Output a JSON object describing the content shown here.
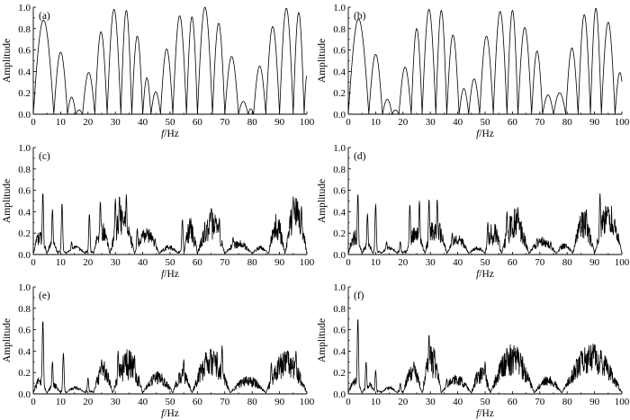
{
  "colors": {
    "line": "#000000",
    "axis": "#000000",
    "background": "#ffffff"
  },
  "chart_data": [
    {
      "type": "line",
      "panel": "(a)",
      "xlabel_italic": "f",
      "xlabel_rest": "/Hz",
      "ylabel": "Amplitude",
      "xlim": [
        0,
        100
      ],
      "ylim": [
        0,
        1.0
      ],
      "xticks": [
        "0",
        "10",
        "20",
        "30",
        "40",
        "50",
        "60",
        "70",
        "80",
        "90",
        "100"
      ],
      "yticks": [
        "0.0",
        "0.2",
        "0.4",
        "0.6",
        "0.8",
        "1.0"
      ],
      "grid": false,
      "series": [
        {
          "lobes": [
            {
              "x0": 0,
              "x1": 7.5,
              "peak": 0.88
            },
            {
              "x0": 7.5,
              "x1": 12.5,
              "peak": 0.58
            },
            {
              "x0": 12.5,
              "x1": 15.5,
              "peak": 0.16
            },
            {
              "x0": 15.5,
              "x1": 18,
              "peak": 0.04
            },
            {
              "x0": 18,
              "x1": 22.5,
              "peak": 0.39
            },
            {
              "x0": 22.5,
              "x1": 27,
              "peak": 0.77
            },
            {
              "x0": 27,
              "x1": 32,
              "peak": 0.98
            },
            {
              "x0": 32,
              "x1": 36,
              "peak": 0.97
            },
            {
              "x0": 36,
              "x1": 40,
              "peak": 0.73
            },
            {
              "x0": 40,
              "x1": 43,
              "peak": 0.34
            },
            {
              "x0": 43,
              "x1": 46.5,
              "peak": 0.21
            },
            {
              "x0": 46.5,
              "x1": 51,
              "peak": 0.61
            },
            {
              "x0": 51,
              "x1": 56,
              "peak": 0.92
            },
            {
              "x0": 56,
              "x1": 60,
              "peak": 0.91
            },
            {
              "x0": 60,
              "x1": 65.5,
              "peak": 1.0
            },
            {
              "x0": 65.5,
              "x1": 70,
              "peak": 0.85
            },
            {
              "x0": 70,
              "x1": 75,
              "peak": 0.54
            },
            {
              "x0": 75,
              "x1": 78.5,
              "peak": 0.12
            },
            {
              "x0": 78.5,
              "x1": 80.5,
              "peak": 0.05
            },
            {
              "x0": 80.5,
              "x1": 85,
              "peak": 0.45
            },
            {
              "x0": 85,
              "x1": 90,
              "peak": 0.82
            },
            {
              "x0": 90,
              "x1": 95,
              "peak": 0.99
            },
            {
              "x0": 95,
              "x1": 99,
              "peak": 0.95
            },
            {
              "x0": 99,
              "x1": 101,
              "peak": 0.36
            }
          ]
        }
      ]
    },
    {
      "type": "line",
      "panel": "(b)",
      "xlabel_italic": "f",
      "xlabel_rest": "/Hz",
      "ylabel": "Amplitude",
      "xlim": [
        0,
        100
      ],
      "ylim": [
        0,
        1.0
      ],
      "xticks": [
        "0",
        "10",
        "20",
        "30",
        "40",
        "50",
        "60",
        "70",
        "80",
        "90",
        "100"
      ],
      "yticks": [
        "0.0",
        "0.2",
        "0.4",
        "0.6",
        "0.8",
        "1.0"
      ],
      "grid": false,
      "series": [
        {
          "lobes": [
            {
              "x0": 0,
              "x1": 7.5,
              "peak": 0.89
            },
            {
              "x0": 7.5,
              "x1": 12.5,
              "peak": 0.56
            },
            {
              "x0": 12.5,
              "x1": 16,
              "peak": 0.14
            },
            {
              "x0": 16,
              "x1": 18.5,
              "peak": 0.04
            },
            {
              "x0": 18.5,
              "x1": 23,
              "peak": 0.44
            },
            {
              "x0": 23,
              "x1": 27,
              "peak": 0.8
            },
            {
              "x0": 27,
              "x1": 32,
              "peak": 0.98
            },
            {
              "x0": 32,
              "x1": 36,
              "peak": 0.97
            },
            {
              "x0": 36,
              "x1": 40.5,
              "peak": 0.74
            },
            {
              "x0": 40.5,
              "x1": 44,
              "peak": 0.24
            },
            {
              "x0": 44,
              "x1": 48,
              "peak": 0.33
            },
            {
              "x0": 48,
              "x1": 53,
              "peak": 0.73
            },
            {
              "x0": 53,
              "x1": 58,
              "peak": 0.96
            },
            {
              "x0": 58,
              "x1": 62,
              "peak": 0.97
            },
            {
              "x0": 62,
              "x1": 67,
              "peak": 0.81
            },
            {
              "x0": 67,
              "x1": 71,
              "peak": 0.59
            },
            {
              "x0": 71,
              "x1": 75,
              "peak": 0.18
            },
            {
              "x0": 75,
              "x1": 79.5,
              "peak": 0.2
            },
            {
              "x0": 79.5,
              "x1": 84,
              "peak": 0.62
            },
            {
              "x0": 84,
              "x1": 88.5,
              "peak": 0.93
            },
            {
              "x0": 88.5,
              "x1": 92.5,
              "peak": 0.99
            },
            {
              "x0": 92.5,
              "x1": 97.5,
              "peak": 0.86
            },
            {
              "x0": 97.5,
              "x1": 101,
              "peak": 0.39
            }
          ]
        }
      ]
    },
    {
      "type": "line",
      "panel": "(c)",
      "xlabel_italic": "f",
      "xlabel_rest": "/Hz",
      "ylabel": "Amplitude",
      "xlim": [
        0,
        100
      ],
      "ylim": [
        0,
        1.0
      ],
      "xticks": [
        "0",
        "10",
        "20",
        "30",
        "40",
        "50",
        "60",
        "70",
        "80",
        "90",
        "100"
      ],
      "yticks": [
        "0.0",
        "0.2",
        "0.4",
        "0.6",
        "0.8",
        "1.0"
      ],
      "grid": false,
      "series": [
        {
          "spikes": [
            [
              3.5,
              0.58
            ],
            [
              7,
              0.42
            ],
            [
              10.5,
              0.48
            ],
            [
              14,
              0.12
            ],
            [
              20.5,
              0.38
            ],
            [
              24.5,
              0.5
            ],
            [
              30,
              0.52
            ],
            [
              31.5,
              0.55
            ],
            [
              34,
              0.56
            ],
            [
              38,
              0.24
            ],
            [
              41.5,
              0.22
            ],
            [
              44.5,
              0.15
            ],
            [
              54.5,
              0.33
            ],
            [
              65,
              0.43
            ],
            [
              68,
              0.34
            ],
            [
              73,
              0.16
            ],
            [
              77,
              0.11
            ],
            [
              95,
              0.54
            ],
            [
              98,
              0.45
            ]
          ],
          "noise": [
            [
              0,
              5,
              0.14,
              0.08
            ],
            [
              5,
              9,
              0.08,
              0.05
            ],
            [
              12,
              19,
              0.04,
              0.03
            ],
            [
              22,
              28,
              0.18,
              0.12
            ],
            [
              28,
              37,
              0.3,
              0.15
            ],
            [
              37,
              46,
              0.14,
              0.1
            ],
            [
              46,
              53,
              0.05,
              0.03
            ],
            [
              55,
              60,
              0.26,
              0.08
            ],
            [
              60,
              70,
              0.3,
              0.12
            ],
            [
              70,
              80,
              0.08,
              0.05
            ],
            [
              80,
              86,
              0.04,
              0.03
            ],
            [
              86,
              92,
              0.26,
              0.12
            ],
            [
              92,
              100,
              0.34,
              0.2
            ]
          ]
        }
      ]
    },
    {
      "type": "line",
      "panel": "(d)",
      "xlabel_italic": "f",
      "xlabel_rest": "/Hz",
      "ylabel": "Amplitude",
      "xlim": [
        0,
        100
      ],
      "ylim": [
        0,
        1.0
      ],
      "xticks": [
        "0",
        "10",
        "20",
        "30",
        "40",
        "50",
        "60",
        "70",
        "80",
        "90",
        "100"
      ],
      "yticks": [
        "0.0",
        "0.2",
        "0.4",
        "0.6",
        "0.8",
        "1.0"
      ],
      "grid": false,
      "series": [
        {
          "spikes": [
            [
              3.5,
              0.57
            ],
            [
              7,
              0.38
            ],
            [
              10,
              0.47
            ],
            [
              14,
              0.12
            ],
            [
              19,
              0.12
            ],
            [
              22.5,
              0.47
            ],
            [
              26,
              0.5
            ],
            [
              29.5,
              0.52
            ],
            [
              32.5,
              0.52
            ],
            [
              38,
              0.2
            ],
            [
              41,
              0.14
            ],
            [
              46,
              0.04
            ],
            [
              51,
              0.3
            ],
            [
              58,
              0.4
            ],
            [
              62,
              0.44
            ],
            [
              69,
              0.15
            ],
            [
              74,
              0.12
            ],
            [
              87,
              0.42
            ],
            [
              92,
              0.57
            ],
            [
              95,
              0.44
            ]
          ],
          "noise": [
            [
              0,
              5,
              0.14,
              0.08
            ],
            [
              5,
              9,
              0.08,
              0.04
            ],
            [
              12,
              18,
              0.04,
              0.03
            ],
            [
              21,
              28,
              0.16,
              0.1
            ],
            [
              28,
              36,
              0.25,
              0.12
            ],
            [
              36,
              44,
              0.1,
              0.08
            ],
            [
              44,
              50,
              0.04,
              0.03
            ],
            [
              50,
              56,
              0.24,
              0.08
            ],
            [
              56,
              66,
              0.3,
              0.12
            ],
            [
              66,
              76,
              0.1,
              0.06
            ],
            [
              76,
              82,
              0.06,
              0.04
            ],
            [
              82,
              90,
              0.28,
              0.12
            ],
            [
              90,
              100,
              0.28,
              0.2
            ]
          ]
        }
      ]
    },
    {
      "type": "line",
      "panel": "(e)",
      "xlabel_italic": "f",
      "xlabel_rest": "/Hz",
      "ylabel": "Amplitude",
      "xlim": [
        0,
        100
      ],
      "ylim": [
        0,
        1.0
      ],
      "xticks": [
        "0",
        "10",
        "20",
        "30",
        "40",
        "50",
        "60",
        "70",
        "80",
        "90",
        "100"
      ],
      "yticks": [
        "0.0",
        "0.2",
        "0.4",
        "0.6",
        "0.8",
        "1.0"
      ],
      "grid": false,
      "series": [
        {
          "spikes": [
            [
              3.5,
              0.69
            ],
            [
              7,
              0.3
            ],
            [
              11,
              0.38
            ],
            [
              15,
              0.07
            ],
            [
              20,
              0.15
            ],
            [
              25,
              0.32
            ],
            [
              31,
              0.4
            ],
            [
              33.5,
              0.38
            ],
            [
              37,
              0.36
            ],
            [
              46,
              0.08
            ],
            [
              55,
              0.32
            ],
            [
              66,
              0.4
            ],
            [
              69,
              0.45
            ],
            [
              87,
              0.29
            ],
            [
              96,
              0.4
            ]
          ],
          "noise": [
            [
              0,
              5,
              0.1,
              0.06
            ],
            [
              5,
              10,
              0.06,
              0.04
            ],
            [
              12,
              19,
              0.03,
              0.03
            ],
            [
              22,
              29,
              0.2,
              0.1
            ],
            [
              29,
              40,
              0.3,
              0.12
            ],
            [
              40,
              51,
              0.12,
              0.08
            ],
            [
              51,
              58,
              0.15,
              0.08
            ],
            [
              58,
              72,
              0.28,
              0.15
            ],
            [
              72,
              85,
              0.1,
              0.06
            ],
            [
              85,
              100,
              0.26,
              0.14
            ]
          ]
        }
      ]
    },
    {
      "type": "line",
      "panel": "(f)",
      "xlabel_italic": "f",
      "xlabel_rest": "/Hz",
      "ylabel": "Amplitude",
      "xlim": [
        0,
        100
      ],
      "ylim": [
        0,
        1.0
      ],
      "xticks": [
        "0",
        "10",
        "20",
        "30",
        "40",
        "50",
        "60",
        "70",
        "80",
        "90",
        "100"
      ],
      "yticks": [
        "0.0",
        "0.2",
        "0.4",
        "0.6",
        "0.8",
        "1.0"
      ],
      "grid": false,
      "series": [
        {
          "spikes": [
            [
              3.5,
              0.71
            ],
            [
              6.5,
              0.3
            ],
            [
              10,
              0.22
            ],
            [
              15,
              0.05
            ],
            [
              19,
              0.1
            ],
            [
              24,
              0.3
            ],
            [
              29.5,
              0.56
            ],
            [
              31.5,
              0.42
            ],
            [
              36,
              0.14
            ],
            [
              50,
              0.3
            ],
            [
              58,
              0.42
            ],
            [
              63,
              0.38
            ],
            [
              85,
              0.4
            ],
            [
              88,
              0.45
            ]
          ],
          "noise": [
            [
              0,
              5,
              0.1,
              0.06
            ],
            [
              5,
              10,
              0.06,
              0.04
            ],
            [
              12,
              18,
              0.03,
              0.03
            ],
            [
              20,
              27,
              0.18,
              0.1
            ],
            [
              27,
              34,
              0.32,
              0.14
            ],
            [
              34,
              45,
              0.1,
              0.07
            ],
            [
              45,
              52,
              0.18,
              0.08
            ],
            [
              52,
              68,
              0.3,
              0.16
            ],
            [
              68,
              78,
              0.1,
              0.06
            ],
            [
              78,
              100,
              0.28,
              0.18
            ]
          ]
        }
      ]
    }
  ]
}
